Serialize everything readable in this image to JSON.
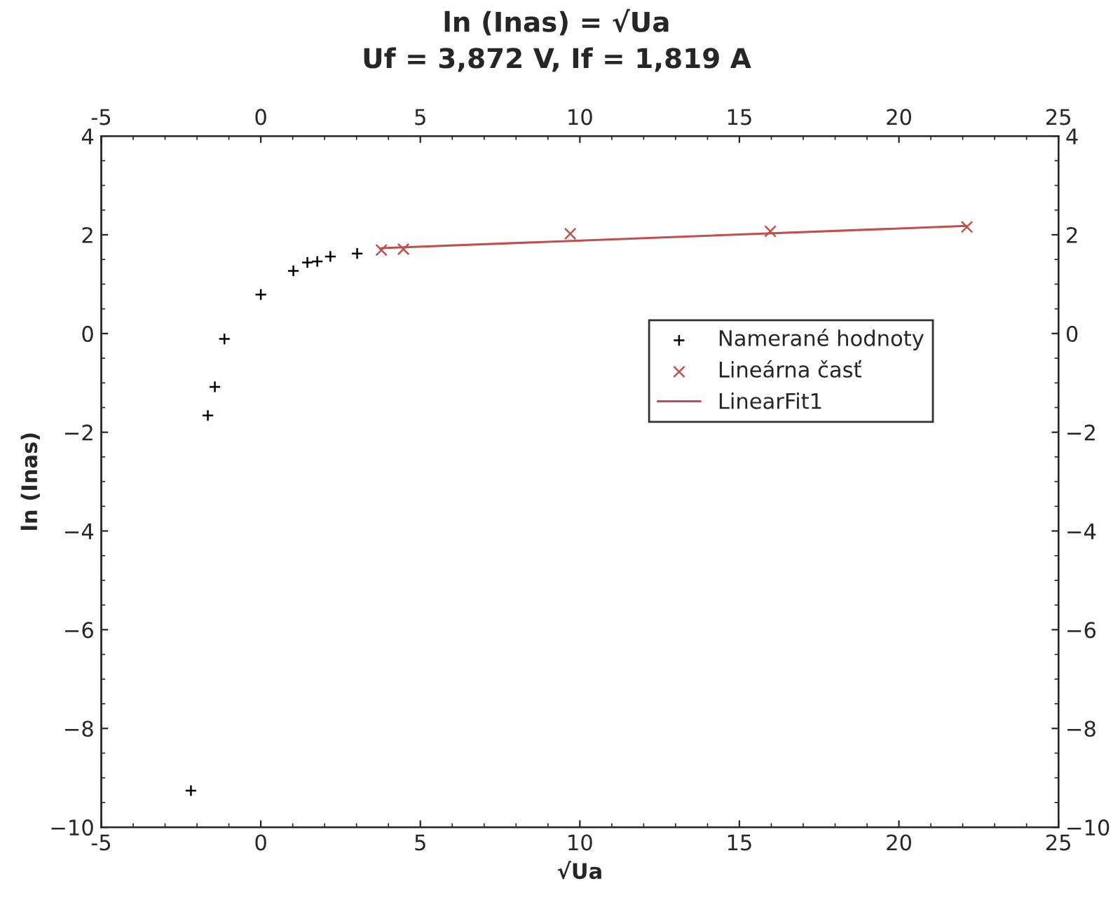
{
  "chart_data": {
    "type": "scatter",
    "title": "ln (Inas) = √Ua",
    "subtitle": "Uf = 3,872 V, If = 1,819 A",
    "xlabel": "√Ua",
    "ylabel": "ln (Inas)",
    "xlim": [
      -5,
      25
    ],
    "xticks": [
      -5,
      0,
      5,
      10,
      15,
      20,
      25
    ],
    "ylim": [
      -10,
      4
    ],
    "yticks": [
      {
        "value": -10,
        "label": "−10"
      },
      {
        "value": -8,
        "label": "−8"
      },
      {
        "value": -6,
        "label": "−6"
      },
      {
        "value": -4,
        "label": "−4"
      },
      {
        "value": -2,
        "label": "−2"
      },
      0,
      2,
      4
    ],
    "x2lim": [
      -5,
      25
    ],
    "x2ticks": [
      -5,
      0,
      5,
      10,
      15,
      20,
      25
    ],
    "y2lim": [
      -10,
      4
    ],
    "y2ticks": [
      {
        "value": -10,
        "label": "−10"
      },
      {
        "value": -8,
        "label": "−8"
      },
      {
        "value": -6,
        "label": "−6"
      },
      {
        "value": -4,
        "label": "−4"
      },
      {
        "value": -2,
        "label": "−2"
      },
      0,
      2,
      4
    ],
    "grid": false,
    "legend": "right",
    "series": [
      {
        "name": "Namerané hodnoty",
        "marker": "plus",
        "color": "#000000",
        "x": [
          -2.19,
          -1.66,
          -1.44,
          -1.14,
          0.0,
          1.02,
          1.46,
          1.77,
          2.18,
          3.02
        ],
        "values": [
          -9.26,
          -1.66,
          -1.08,
          -0.11,
          0.79,
          1.27,
          1.44,
          1.46,
          1.56,
          1.62
        ]
      },
      {
        "name": "Lineárna časť",
        "marker": "cross",
        "color": "#c0504d",
        "x": [
          3.78,
          4.47,
          9.7,
          15.97,
          22.13
        ],
        "values": [
          1.69,
          1.71,
          2.02,
          2.07,
          2.16
        ]
      },
      {
        "name": "LinearFit1",
        "type": "line",
        "marker": "none",
        "line_style": "solid",
        "color": "#c0504d",
        "x": [
          3.78,
          22.13
        ],
        "values": [
          1.73,
          2.18
        ]
      }
    ]
  }
}
